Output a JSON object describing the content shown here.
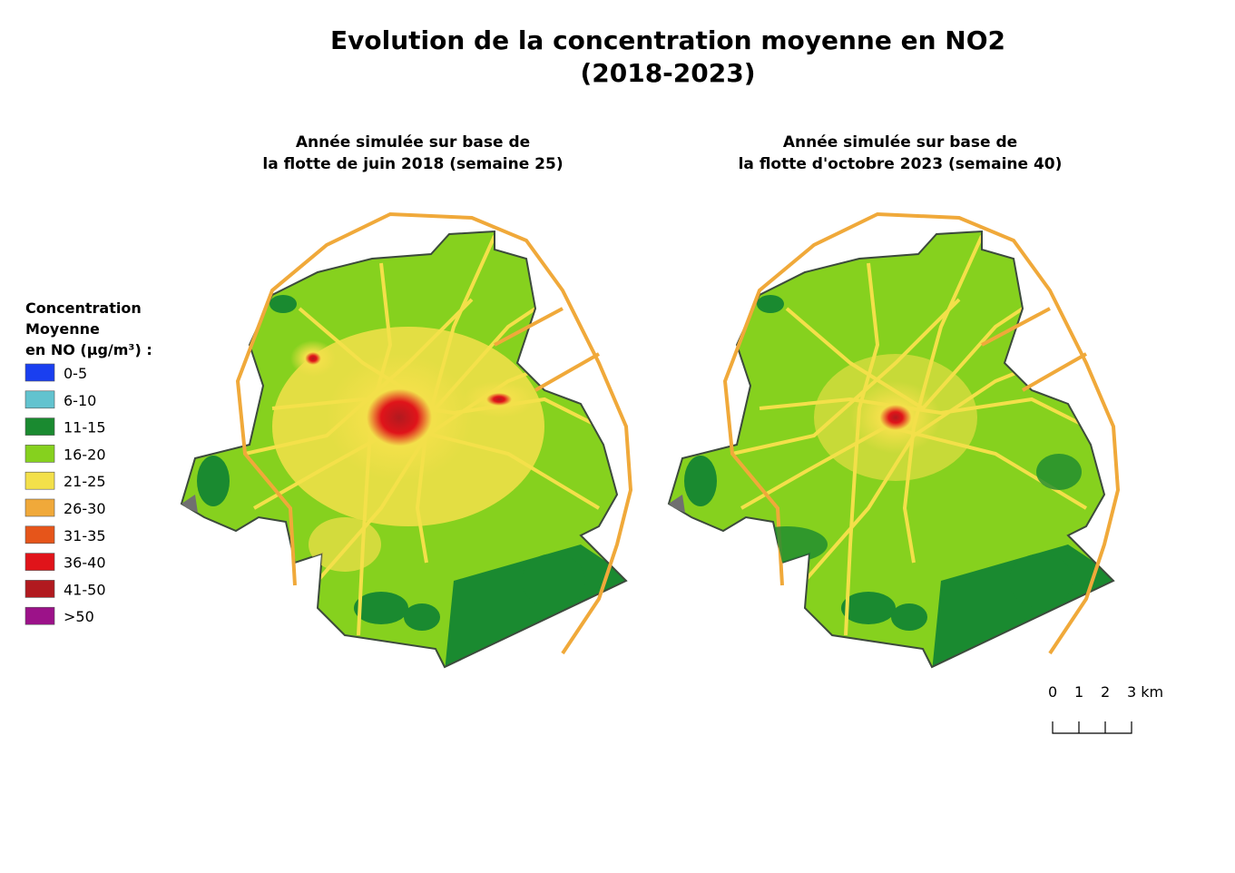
{
  "title": [
    "Evolution de la concentration moyenne en NO2",
    "(2018-2023)"
  ],
  "maps": [
    {
      "subtitle": [
        "Année simulée sur base de",
        "la flotte de juin 2018 (semaine 25)"
      ]
    },
    {
      "subtitle": [
        "Année simulée sur base de",
        "la flotte d'octobre 2023 (semaine 40)"
      ]
    }
  ],
  "legend": {
    "title": [
      "Concentration",
      "Moyenne",
      "en NO (µg/m³) :"
    ],
    "items": [
      {
        "label": "0-5",
        "color": "#1a3ff0"
      },
      {
        "label": "6-10",
        "color": "#62c3cf"
      },
      {
        "label": "11-15",
        "color": "#1a8a30"
      },
      {
        "label": "16-20",
        "color": "#86d11e"
      },
      {
        "label": "21-25",
        "color": "#f3e04a"
      },
      {
        "label": "26-30",
        "color": "#f0a93a"
      },
      {
        "label": "31-35",
        "color": "#e6551a"
      },
      {
        "label": "36-40",
        "color": "#e0141a"
      },
      {
        "label": "41-50",
        "color": "#b11a1f"
      },
      {
        "label": ">50",
        "color": "#9c1289"
      }
    ]
  },
  "scale": [
    "0",
    "1",
    "2",
    "3 km"
  ]
}
